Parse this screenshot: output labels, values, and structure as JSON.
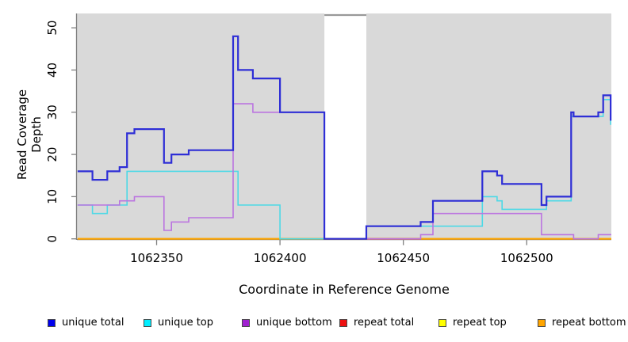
{
  "chart_data": {
    "type": "line",
    "subtype": "step-after",
    "title": "",
    "xlabel": "Coordinate in Reference Genome",
    "ylabel": "Read Coverage Depth",
    "xlim": [
      1062317.7,
      1062534.3
    ],
    "ylim": [
      0,
      53.4
    ],
    "x_ticks": [
      1062350,
      1062400,
      1062450,
      1062500
    ],
    "y_ticks": [
      0,
      10,
      20,
      30,
      40,
      50
    ],
    "grid": false,
    "plot_bg": "#d9d9d9",
    "axis_color": "#808080",
    "gap": {
      "x_start": 1062418,
      "x_end": 1062435,
      "fill": "#ffffff",
      "top_border": "#999999"
    },
    "bottom_overlay": {
      "x_start": 1062435,
      "x_end": 1062457,
      "value": 0,
      "color": "#c5596b"
    },
    "series": [
      {
        "name": "repeat-total",
        "label": "repeat total",
        "line_color": "#cc2233",
        "width": 1.8,
        "extend": true,
        "points": [
          [
            1062318,
            0
          ]
        ]
      },
      {
        "name": "repeat-top",
        "label": "repeat top",
        "line_color": "#eeee00",
        "width": 1.8,
        "extend": true,
        "points": [
          [
            1062318,
            0
          ]
        ]
      },
      {
        "name": "repeat-bottom",
        "label": "repeat bottom",
        "line_color": "#ffa500",
        "width": 1.8,
        "extend": true,
        "points": [
          [
            1062318,
            0
          ]
        ]
      },
      {
        "name": "unique-top",
        "label": "unique top",
        "line_color": "#4dd9e6",
        "width": 1.6,
        "extend": false,
        "points": [
          [
            1062318,
            8
          ],
          [
            1062324,
            6
          ],
          [
            1062330,
            8
          ],
          [
            1062338,
            16
          ],
          [
            1062383,
            8
          ],
          [
            1062400,
            0
          ],
          [
            1062435,
            3
          ],
          [
            1062482,
            10
          ],
          [
            1062488,
            9
          ],
          [
            1062490,
            7
          ],
          [
            1062508,
            9
          ],
          [
            1062518,
            29
          ],
          [
            1062531,
            33
          ],
          [
            1062534,
            27
          ]
        ]
      },
      {
        "name": "unique-bottom",
        "label": "unique bottom",
        "line_color": "#bb74e0",
        "width": 1.6,
        "extend": true,
        "points": [
          [
            1062318,
            8
          ],
          [
            1062335,
            9
          ],
          [
            1062341,
            10
          ],
          [
            1062353,
            2
          ],
          [
            1062356,
            4
          ],
          [
            1062363,
            5
          ],
          [
            1062381,
            32
          ],
          [
            1062389,
            30
          ],
          [
            1062418,
            0
          ],
          [
            1062457,
            1
          ],
          [
            1062462,
            6
          ],
          [
            1062506,
            1
          ],
          [
            1062519,
            0
          ],
          [
            1062529,
            1
          ]
        ]
      },
      {
        "name": "unique-total",
        "label": "unique total",
        "line_color": "#2e2ed6",
        "width": 2.2,
        "extend": false,
        "points": [
          [
            1062318,
            16
          ],
          [
            1062324,
            14
          ],
          [
            1062330,
            16
          ],
          [
            1062335,
            17
          ],
          [
            1062338,
            25
          ],
          [
            1062341,
            26
          ],
          [
            1062353,
            18
          ],
          [
            1062356,
            20
          ],
          [
            1062363,
            21
          ],
          [
            1062381,
            48
          ],
          [
            1062383,
            40
          ],
          [
            1062389,
            38
          ],
          [
            1062400,
            30
          ],
          [
            1062418,
            0
          ],
          [
            1062435,
            3
          ],
          [
            1062457,
            4
          ],
          [
            1062462,
            9
          ],
          [
            1062482,
            16
          ],
          [
            1062488,
            15
          ],
          [
            1062490,
            13
          ],
          [
            1062506,
            8
          ],
          [
            1062508,
            10
          ],
          [
            1062518,
            30
          ],
          [
            1062519,
            29
          ],
          [
            1062529,
            30
          ],
          [
            1062531,
            34
          ],
          [
            1062534,
            28
          ]
        ]
      }
    ],
    "legend": {
      "position": "bottom",
      "entries": [
        {
          "label": "unique total",
          "fill": "#0000ee"
        },
        {
          "label": "unique top",
          "fill": "#00eeff"
        },
        {
          "label": "unique bottom",
          "fill": "#a020d0"
        },
        {
          "label": "repeat total",
          "fill": "#ee1111"
        },
        {
          "label": "repeat top",
          "fill": "#ffff00"
        },
        {
          "label": "repeat bottom",
          "fill": "#ffa500"
        }
      ]
    }
  }
}
